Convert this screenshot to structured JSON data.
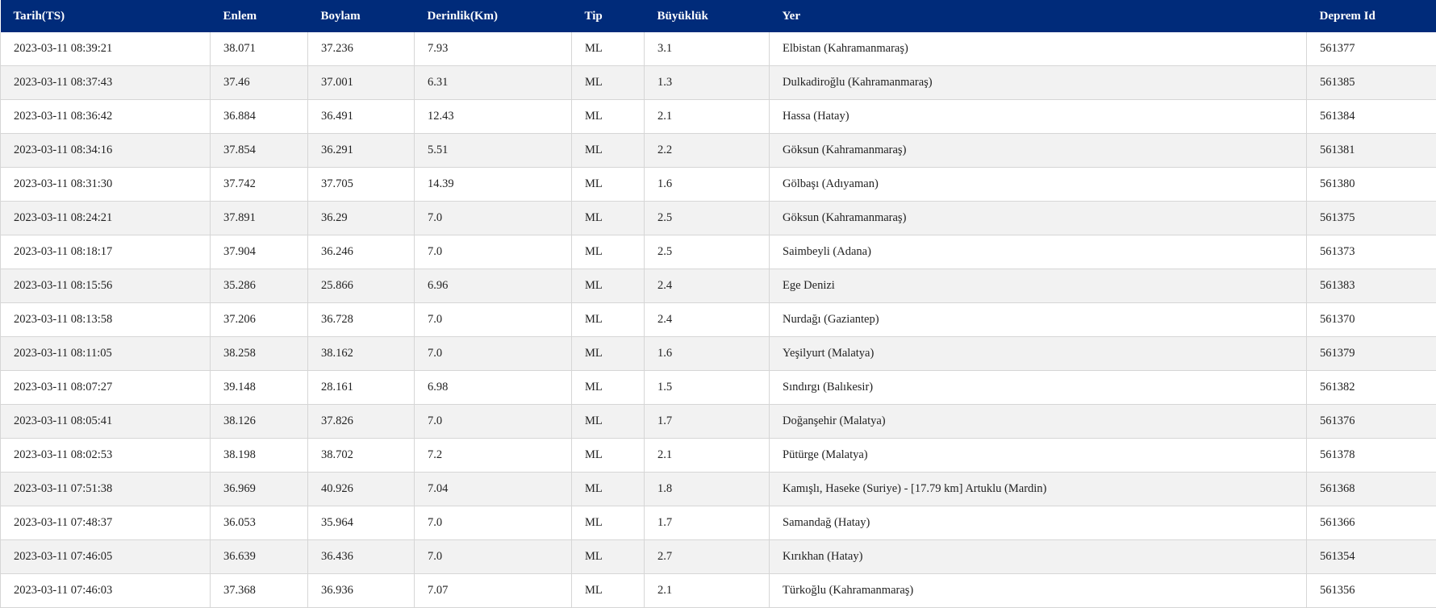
{
  "columns": [
    "Tarih(TS)",
    "Enlem",
    "Boylam",
    "Derinlik(Km)",
    "Tip",
    "Büyüklük",
    "Yer",
    "Deprem Id"
  ],
  "rows": [
    [
      "2023-03-11 08:39:21",
      "38.071",
      "37.236",
      "7.93",
      "ML",
      "3.1",
      "Elbistan (Kahramanmaraş)",
      "561377"
    ],
    [
      "2023-03-11 08:37:43",
      "37.46",
      "37.001",
      "6.31",
      "ML",
      "1.3",
      "Dulkadiroğlu (Kahramanmaraş)",
      "561385"
    ],
    [
      "2023-03-11 08:36:42",
      "36.884",
      "36.491",
      "12.43",
      "ML",
      "2.1",
      "Hassa (Hatay)",
      "561384"
    ],
    [
      "2023-03-11 08:34:16",
      "37.854",
      "36.291",
      "5.51",
      "ML",
      "2.2",
      "Göksun (Kahramanmaraş)",
      "561381"
    ],
    [
      "2023-03-11 08:31:30",
      "37.742",
      "37.705",
      "14.39",
      "ML",
      "1.6",
      "Gölbaşı (Adıyaman)",
      "561380"
    ],
    [
      "2023-03-11 08:24:21",
      "37.891",
      "36.29",
      "7.0",
      "ML",
      "2.5",
      "Göksun (Kahramanmaraş)",
      "561375"
    ],
    [
      "2023-03-11 08:18:17",
      "37.904",
      "36.246",
      "7.0",
      "ML",
      "2.5",
      "Saimbeyli (Adana)",
      "561373"
    ],
    [
      "2023-03-11 08:15:56",
      "35.286",
      "25.866",
      "6.96",
      "ML",
      "2.4",
      "Ege Denizi",
      "561383"
    ],
    [
      "2023-03-11 08:13:58",
      "37.206",
      "36.728",
      "7.0",
      "ML",
      "2.4",
      "Nurdağı (Gaziantep)",
      "561370"
    ],
    [
      "2023-03-11 08:11:05",
      "38.258",
      "38.162",
      "7.0",
      "ML",
      "1.6",
      "Yeşilyurt (Malatya)",
      "561379"
    ],
    [
      "2023-03-11 08:07:27",
      "39.148",
      "28.161",
      "6.98",
      "ML",
      "1.5",
      "Sındırgı (Balıkesir)",
      "561382"
    ],
    [
      "2023-03-11 08:05:41",
      "38.126",
      "37.826",
      "7.0",
      "ML",
      "1.7",
      "Doğanşehir (Malatya)",
      "561376"
    ],
    [
      "2023-03-11 08:02:53",
      "38.198",
      "38.702",
      "7.2",
      "ML",
      "2.1",
      "Pütürge (Malatya)",
      "561378"
    ],
    [
      "2023-03-11 07:51:38",
      "36.969",
      "40.926",
      "7.04",
      "ML",
      "1.8",
      "Kamışlı, Haseke (Suriye) - [17.79 km] Artuklu (Mardin)",
      "561368"
    ],
    [
      "2023-03-11 07:48:37",
      "36.053",
      "35.964",
      "7.0",
      "ML",
      "1.7",
      "Samandağ (Hatay)",
      "561366"
    ],
    [
      "2023-03-11 07:46:05",
      "36.639",
      "36.436",
      "7.0",
      "ML",
      "2.7",
      "Kırıkhan (Hatay)",
      "561354"
    ],
    [
      "2023-03-11 07:46:03",
      "37.368",
      "36.936",
      "7.07",
      "ML",
      "2.1",
      "Türkoğlu (Kahramanmaraş)",
      "561356"
    ]
  ]
}
